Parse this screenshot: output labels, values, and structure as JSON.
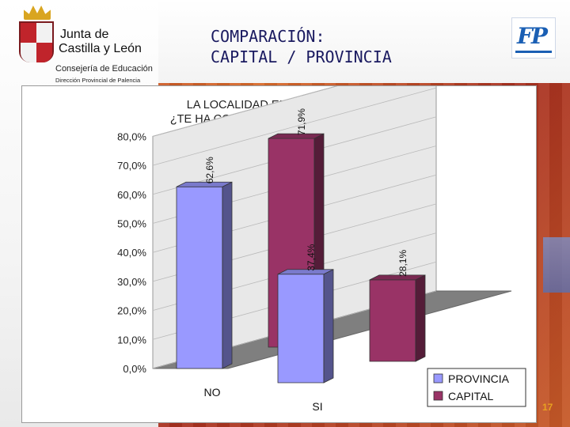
{
  "header": {
    "logo_line1": "Junta de",
    "logo_line2": "Castilla y León",
    "logo_line3": "Consejería de Educación",
    "logo_line4": "Dirección Provincial de Palencia",
    "title_line1": "COMPARACIÓN:",
    "title_line2": "CAPITAL / PROVINCIA"
  },
  "page_number": "17",
  "colors": {
    "provincia": "#9999ff",
    "capital": "#993366",
    "title": "#1a1a60"
  },
  "chart_data": {
    "type": "bar",
    "title": [
      "LA LOCALIDAD EN QUE RESIDES,",
      "¿TE HA CONDICIONADO LA ELECCIÓN?"
    ],
    "categories": [
      "NO",
      "SI"
    ],
    "series": [
      {
        "name": "PROVINCIA",
        "values": [
          62.6,
          37.4
        ],
        "labels": [
          "62,6%",
          "37,4%"
        ]
      },
      {
        "name": "CAPITAL",
        "values": [
          71.9,
          28.1
        ],
        "labels": [
          "71,9%",
          "28,1%"
        ]
      }
    ],
    "yticks": [
      "0,0%",
      "10,0%",
      "20,0%",
      "30,0%",
      "40,0%",
      "50,0%",
      "60,0%",
      "70,0%",
      "80,0%"
    ],
    "ylim": [
      0,
      80
    ],
    "legend_position": "bottom-right"
  }
}
